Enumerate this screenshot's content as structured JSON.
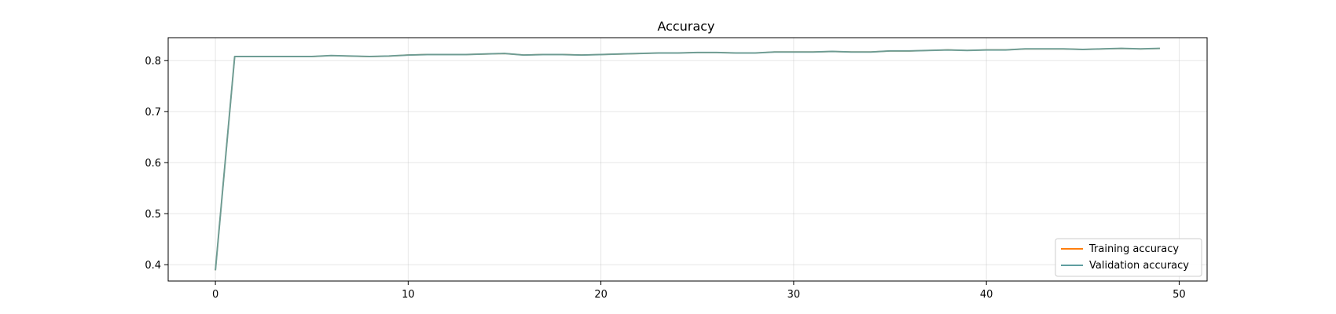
{
  "chart_data": {
    "type": "line",
    "title": "Accuracy",
    "xlabel": "",
    "ylabel": "",
    "xlim": [
      -2.45,
      51.45
    ],
    "ylim": [
      0.368,
      0.845
    ],
    "xticks": [
      0,
      10,
      20,
      30,
      40,
      50
    ],
    "yticks": [
      0.4,
      0.5,
      0.6,
      0.7,
      0.8
    ],
    "xtick_labels": [
      "0",
      "10",
      "20",
      "30",
      "40",
      "50"
    ],
    "ytick_labels": [
      "0.4",
      "0.5",
      "0.6",
      "0.7",
      "0.8"
    ],
    "grid": true,
    "legend_position": "lower-right",
    "x": [
      0,
      1,
      2,
      3,
      4,
      5,
      6,
      7,
      8,
      9,
      10,
      11,
      12,
      13,
      14,
      15,
      16,
      17,
      18,
      19,
      20,
      21,
      22,
      23,
      24,
      25,
      26,
      27,
      28,
      29,
      30,
      31,
      32,
      33,
      34,
      35,
      36,
      37,
      38,
      39,
      40,
      41,
      42,
      43,
      44,
      45,
      46,
      47,
      48,
      49
    ],
    "series": [
      {
        "name": "Training accuracy",
        "color": "#ff7f0e",
        "values": [
          0.389,
          0.808,
          0.808,
          0.808,
          0.808,
          0.808,
          0.81,
          0.809,
          0.808,
          0.809,
          0.811,
          0.812,
          0.812,
          0.812,
          0.813,
          0.814,
          0.811,
          0.812,
          0.812,
          0.811,
          0.812,
          0.813,
          0.814,
          0.815,
          0.815,
          0.816,
          0.816,
          0.815,
          0.815,
          0.817,
          0.817,
          0.817,
          0.818,
          0.817,
          0.817,
          0.819,
          0.819,
          0.82,
          0.821,
          0.82,
          0.821,
          0.821,
          0.823,
          0.823,
          0.823,
          0.822,
          0.823,
          0.824,
          0.823,
          0.824
        ]
      },
      {
        "name": "Validation accuracy",
        "color": "#5f9ea0",
        "values": [
          0.389,
          0.808,
          0.808,
          0.808,
          0.808,
          0.808,
          0.81,
          0.809,
          0.808,
          0.809,
          0.811,
          0.812,
          0.812,
          0.812,
          0.813,
          0.814,
          0.811,
          0.812,
          0.812,
          0.811,
          0.812,
          0.813,
          0.814,
          0.815,
          0.815,
          0.816,
          0.816,
          0.815,
          0.815,
          0.817,
          0.817,
          0.817,
          0.818,
          0.817,
          0.817,
          0.819,
          0.819,
          0.82,
          0.821,
          0.82,
          0.821,
          0.821,
          0.823,
          0.823,
          0.823,
          0.822,
          0.823,
          0.824,
          0.823,
          0.824
        ]
      }
    ]
  }
}
